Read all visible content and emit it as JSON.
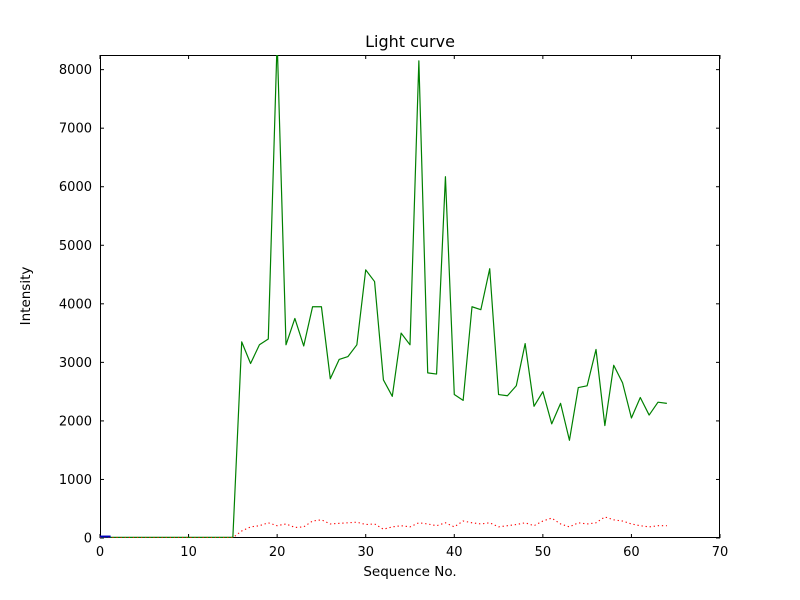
{
  "window": {
    "background": "#ffffff"
  },
  "chart_data": {
    "type": "line",
    "title": "Light curve",
    "xlabel": "Sequence No.",
    "ylabel": "Intensity",
    "xlim": [
      0,
      70
    ],
    "ylim": [
      0,
      8250
    ],
    "x_ticks": [
      0,
      10,
      20,
      30,
      40,
      50,
      60,
      70
    ],
    "y_ticks": [
      0,
      1000,
      2000,
      3000,
      4000,
      5000,
      6000,
      7000,
      8000
    ],
    "grid": false,
    "legend": "none",
    "series": [
      {
        "name": "intensity-green",
        "color": "#008000",
        "line_style": "solid",
        "width": 1.2,
        "x": [
          0,
          1,
          2,
          3,
          4,
          5,
          6,
          7,
          8,
          9,
          10,
          11,
          12,
          13,
          14,
          15,
          16,
          17,
          18,
          19,
          20,
          21,
          22,
          23,
          24,
          25,
          26,
          27,
          28,
          29,
          30,
          31,
          32,
          33,
          34,
          35,
          36,
          37,
          38,
          39,
          40,
          41,
          42,
          43,
          44,
          45,
          46,
          47,
          48,
          49,
          50,
          51,
          52,
          53,
          54,
          55,
          56,
          57,
          58,
          59,
          60,
          61,
          62,
          63,
          64
        ],
        "values": [
          10,
          10,
          10,
          10,
          10,
          10,
          10,
          10,
          10,
          10,
          10,
          10,
          10,
          10,
          10,
          10,
          3350,
          2980,
          3300,
          3400,
          8500,
          3300,
          3750,
          3280,
          3950,
          3950,
          2720,
          3050,
          3100,
          3300,
          4580,
          4380,
          2700,
          2420,
          3500,
          3300,
          8150,
          2820,
          2800,
          6170,
          2450,
          2350,
          3950,
          3900,
          4600,
          2450,
          2430,
          2600,
          3320,
          2250,
          2500,
          1950,
          2300,
          1670,
          2570,
          2600,
          3220,
          1920,
          2950,
          2650,
          2050,
          2400,
          2100,
          2320,
          2300
        ]
      },
      {
        "name": "background-red-dotted",
        "color": "#ff0000",
        "line_style": "dotted",
        "width": 1.1,
        "x": [
          0,
          1,
          2,
          3,
          4,
          5,
          6,
          7,
          8,
          9,
          10,
          11,
          12,
          13,
          14,
          15,
          16,
          17,
          18,
          19,
          20,
          21,
          22,
          23,
          24,
          25,
          26,
          27,
          28,
          29,
          30,
          31,
          32,
          33,
          34,
          35,
          36,
          37,
          38,
          39,
          40,
          41,
          42,
          43,
          44,
          45,
          46,
          47,
          48,
          49,
          50,
          51,
          52,
          53,
          54,
          55,
          56,
          57,
          58,
          59,
          60,
          61,
          62,
          63,
          64
        ],
        "values": [
          5,
          5,
          5,
          5,
          5,
          5,
          5,
          5,
          5,
          5,
          5,
          5,
          5,
          5,
          5,
          5,
          120,
          190,
          210,
          260,
          210,
          240,
          180,
          190,
          290,
          310,
          240,
          250,
          260,
          270,
          230,
          240,
          150,
          190,
          210,
          190,
          260,
          240,
          210,
          260,
          190,
          290,
          260,
          240,
          260,
          190,
          210,
          230,
          260,
          210,
          290,
          340,
          240,
          190,
          260,
          240,
          260,
          360,
          310,
          290,
          240,
          210,
          190,
          210,
          210
        ]
      },
      {
        "name": "marker-blue",
        "color": "#0000bb",
        "line_style": "solid",
        "width": 2,
        "x": [
          0,
          1.2
        ],
        "values": [
          25,
          25
        ]
      }
    ]
  }
}
